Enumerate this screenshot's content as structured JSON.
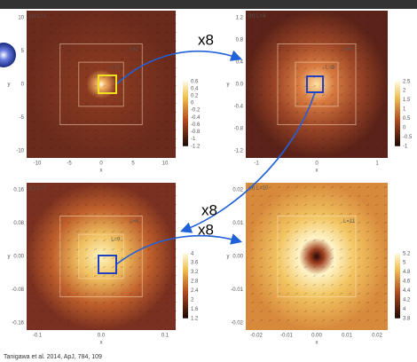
{
  "panels": [
    {
      "label": "(a) L=1",
      "insets": [
        "L=2",
        "L=3"
      ],
      "yticks": [
        "10",
        "5",
        "0",
        "-5",
        "-10"
      ],
      "xticks": [
        "-10",
        "-5",
        "0",
        "5",
        "10"
      ],
      "xlabel": "x",
      "ylabel": "y",
      "colorbar": [
        "0.6",
        "0.4",
        "0.2",
        "0",
        "-0.2",
        "-0.4",
        "-0.6",
        "-0.8",
        "-1",
        "-1.2"
      ]
    },
    {
      "label": "(b) L=4",
      "insets": [
        "L=5",
        "L=6"
      ],
      "yticks": [
        "1.2",
        "0.8",
        "0.4",
        "0.0",
        "-0.4",
        "-0.8",
        "-1.2"
      ],
      "xticks": [
        "-1",
        "0",
        "1"
      ],
      "xlabel": "x",
      "ylabel": "y",
      "colorbar": [
        "2.5",
        "2",
        "1.5",
        "1",
        "0.5",
        "0",
        "-0.5",
        "-1"
      ]
    },
    {
      "label": "(c) L=7",
      "insets": [
        "L=8",
        "L=9"
      ],
      "yticks": [
        "0.16",
        "0.08",
        "0.00",
        "-0.08",
        "-0.16"
      ],
      "xticks": [
        "-0.1",
        "0.0",
        "0.1"
      ],
      "xlabel": "x",
      "ylabel": "y",
      "colorbar": [
        "4",
        "3.6",
        "3.2",
        "2.8",
        "2.4",
        "2",
        "1.6",
        "1.2"
      ]
    },
    {
      "label": "(d) L=10",
      "insets": [
        "L=11"
      ],
      "yticks": [
        "0.02",
        "0.01",
        "0.00",
        "-0.01",
        "-0.02"
      ],
      "xticks": [
        "-0.02",
        "-0.01",
        "0.00",
        "0.01",
        "0.02"
      ],
      "xlabel": "x",
      "ylabel": "y",
      "colorbar": [
        "5.2",
        "5",
        "4.8",
        "4.6",
        "4.4",
        "4.2",
        "4",
        "3.8"
      ]
    }
  ],
  "zoom_labels": [
    "x8",
    "x8",
    "x8"
  ],
  "citation": "Tanigawa et al. 2014, ApJ, 784, 109"
}
